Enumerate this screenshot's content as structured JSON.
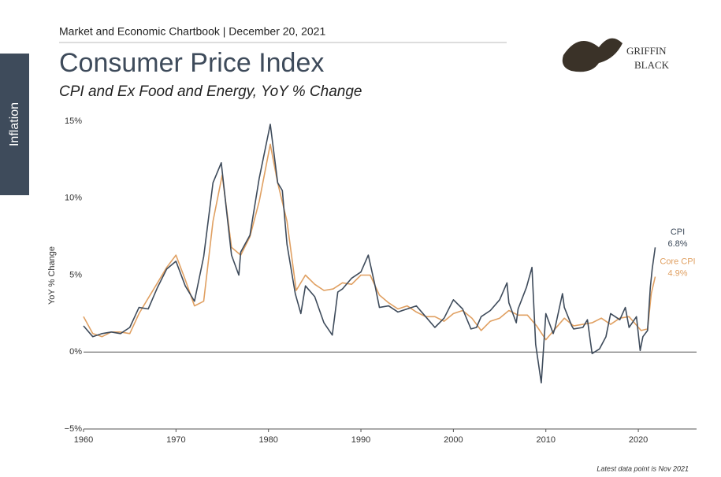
{
  "header": "Market and Economic Chartbook | December 20, 2021",
  "section": "Inflation",
  "logo": {
    "line1": "GRIFFIN",
    "line2": "BLACK"
  },
  "footnote": "Latest data point is Nov 2021",
  "chart_data": {
    "type": "line",
    "title": "Consumer Price Index",
    "subtitle": "CPI and Ex Food and Energy, YoY % Change",
    "y_label": "YoY % Change",
    "xlim": [
      1960,
      2026.3
    ],
    "xticks": [
      1960,
      1970,
      1980,
      1990,
      2000,
      2010,
      2020
    ],
    "ylim": [
      -5,
      15
    ],
    "yticks": [
      {
        "value": -5,
        "label": "−5%"
      },
      {
        "value": 0,
        "label": "0%"
      },
      {
        "value": 5,
        "label": "5%"
      },
      {
        "value": 10,
        "label": "10%"
      },
      {
        "value": 15,
        "label": "15%"
      }
    ],
    "grid": false,
    "series": [
      {
        "name": "CPI",
        "color": "#3e4b5b",
        "end_label": "6.8%",
        "x": [
          1960,
          1961,
          1962,
          1963,
          1964,
          1965,
          1966,
          1967,
          1968,
          1969,
          1970,
          1971,
          1972,
          1973,
          1974,
          1974.9,
          1975.5,
          1976,
          1976.8,
          1977,
          1978,
          1979,
          1980.2,
          1981,
          1981.5,
          1982,
          1982.9,
          1983.5,
          1984,
          1985,
          1986,
          1986.9,
          1987.5,
          1988,
          1989,
          1990,
          1990.8,
          1991.5,
          1992,
          1993,
          1994,
          1995,
          1996,
          1997,
          1998,
          1999,
          2000,
          2001,
          2001.9,
          2002.5,
          2003,
          2004,
          2005,
          2005.8,
          2006,
          2006.8,
          2007,
          2007.9,
          2008.5,
          2008.9,
          2009.5,
          2010,
          2010.8,
          2011,
          2011.8,
          2012,
          2012.8,
          2013,
          2014,
          2014.5,
          2015,
          2015.8,
          2016.5,
          2017,
          2018,
          2018.6,
          2019,
          2019.8,
          2020.2,
          2020.5,
          2021,
          2021.3,
          2021.5,
          2021.83
        ],
        "values": [
          1.7,
          1.0,
          1.2,
          1.3,
          1.2,
          1.6,
          2.9,
          2.8,
          4.2,
          5.4,
          5.9,
          4.3,
          3.3,
          6.2,
          11.0,
          12.3,
          9.0,
          6.3,
          5.0,
          6.5,
          7.6,
          11.3,
          14.8,
          11.0,
          10.5,
          7.0,
          3.8,
          2.5,
          4.3,
          3.6,
          1.9,
          1.1,
          3.9,
          4.1,
          4.8,
          5.2,
          6.3,
          4.4,
          2.9,
          3.0,
          2.6,
          2.8,
          3.0,
          2.3,
          1.6,
          2.2,
          3.4,
          2.8,
          1.5,
          1.6,
          2.3,
          2.7,
          3.4,
          4.5,
          3.2,
          1.9,
          2.8,
          4.2,
          5.5,
          0.5,
          -2.0,
          2.5,
          1.2,
          1.6,
          3.8,
          2.9,
          1.7,
          1.5,
          1.6,
          2.1,
          -0.1,
          0.2,
          1.0,
          2.5,
          2.1,
          2.9,
          1.6,
          2.3,
          0.1,
          1.0,
          1.4,
          4.2,
          5.4,
          6.8
        ]
      },
      {
        "name": "Core CPI",
        "color": "#e0a062",
        "end_label": "4.9%",
        "x": [
          1960,
          1961,
          1962,
          1963,
          1964,
          1965,
          1966,
          1967,
          1968,
          1969,
          1970,
          1971,
          1972,
          1973,
          1974,
          1975,
          1976,
          1977,
          1978,
          1979,
          1980.2,
          1981,
          1982,
          1983,
          1984,
          1985,
          1986,
          1987,
          1988,
          1989,
          1990,
          1991,
          1992,
          1993,
          1994,
          1995,
          1996,
          1997,
          1998,
          1999,
          2000,
          2001,
          2002,
          2003,
          2004,
          2005,
          2006,
          2007,
          2008,
          2009,
          2010,
          2011,
          2012,
          2013,
          2014,
          2015,
          2016,
          2017,
          2018,
          2019,
          2020.3,
          2021,
          2021.4,
          2021.6,
          2021.83
        ],
        "values": [
          2.3,
          1.2,
          1.0,
          1.3,
          1.3,
          1.2,
          2.5,
          3.5,
          4.5,
          5.5,
          6.3,
          4.7,
          3.0,
          3.3,
          8.5,
          11.5,
          6.8,
          6.3,
          7.5,
          9.8,
          13.5,
          11.0,
          8.5,
          4.0,
          5.0,
          4.4,
          4.0,
          4.1,
          4.5,
          4.4,
          5.0,
          5.0,
          3.7,
          3.2,
          2.8,
          3.0,
          2.6,
          2.3,
          2.3,
          2.0,
          2.5,
          2.7,
          2.2,
          1.4,
          2.0,
          2.2,
          2.7,
          2.4,
          2.4,
          1.7,
          0.8,
          1.5,
          2.2,
          1.7,
          1.8,
          1.9,
          2.2,
          1.8,
          2.2,
          2.3,
          1.4,
          1.5,
          3.8,
          4.3,
          4.9
        ]
      }
    ]
  }
}
